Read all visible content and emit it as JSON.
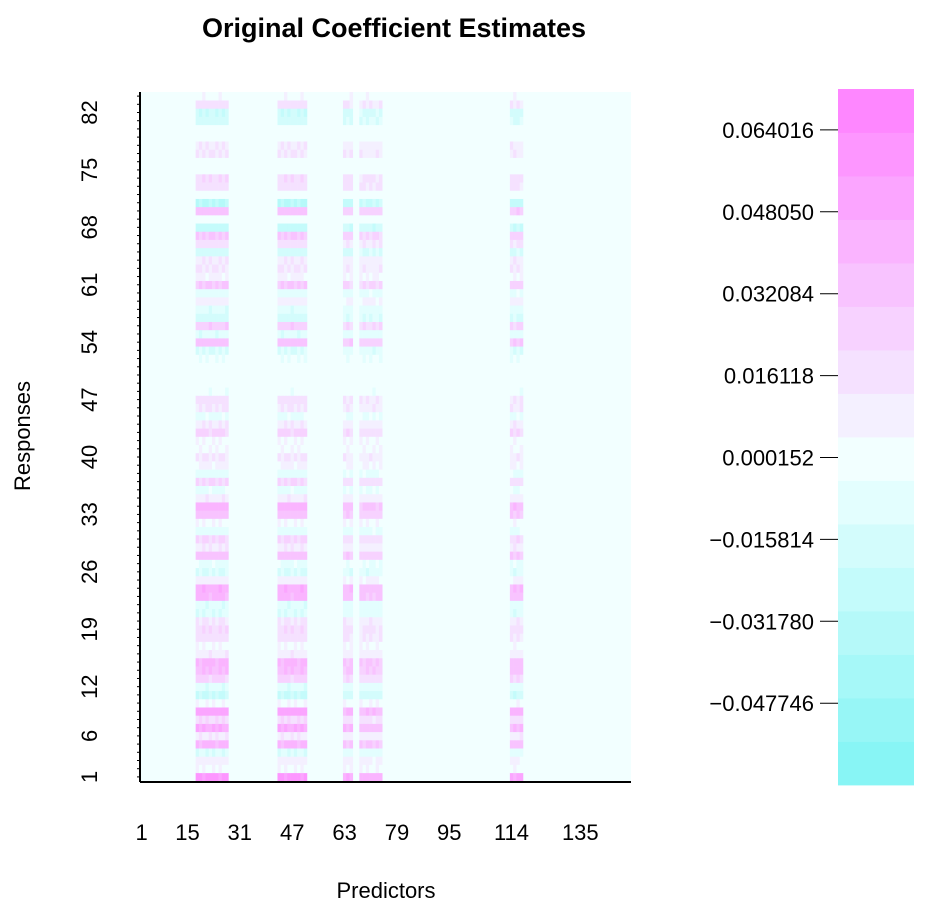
{
  "chart_data": {
    "type": "heatmap",
    "title": "Original Coefficient Estimates",
    "xlabel": "Predictors",
    "ylabel": "Responses",
    "x_range": [
      1,
      150
    ],
    "y_range": [
      1,
      84
    ],
    "x_tick_labels": [
      "1",
      "15",
      "31",
      "47",
      "63",
      "79",
      "95",
      "114",
      "135"
    ],
    "x_tick_values": [
      1,
      15,
      31,
      47,
      63,
      79,
      95,
      114,
      135
    ],
    "y_tick_labels": [
      "1",
      "6",
      "12",
      "19",
      "26",
      "33",
      "40",
      "47",
      "54",
      "61",
      "68",
      "75",
      "82"
    ],
    "y_tick_values": [
      1,
      6,
      12,
      19,
      26,
      33,
      40,
      47,
      54,
      61,
      68,
      75,
      82
    ],
    "colorbar": {
      "min": -0.0637,
      "max": 0.072,
      "tick_labels": [
        "0.064016",
        "0.048050",
        "0.032084",
        "0.016118",
        "0.000152",
        "−0.015814",
        "−0.031780",
        "−0.047746"
      ],
      "tick_values": [
        0.064016,
        0.04805,
        0.032084,
        0.016118,
        0.000152,
        -0.015814,
        -0.03178,
        -0.047746
      ],
      "levels": 16,
      "low_color": "#80f4f4",
      "mid_color": "#f2ffff",
      "high_color": "#ff80ff"
    },
    "background_color": "#f2ffff",
    "active_columns": [
      {
        "x_start": 18,
        "x_end": 27,
        "weight": 1.0
      },
      {
        "x_start": 43,
        "x_end": 51,
        "weight": 1.0
      },
      {
        "x_start": 63,
        "x_end": 65,
        "weight": 0.8
      },
      {
        "x_start": 68,
        "x_end": 74,
        "weight": 0.75
      },
      {
        "x_start": 114,
        "x_end": 117,
        "weight": 0.85
      }
    ],
    "row_values": [
      0.058,
      0.004,
      0.008,
      -0.012,
      0.04,
      0.012,
      0.046,
      0.02,
      0.05,
      0.004,
      -0.022,
      -0.01,
      0.024,
      0.038,
      0.04,
      0.01,
      0.004,
      0.016,
      0.02,
      0.014,
      -0.012,
      -0.01,
      0.04,
      0.044,
      0.008,
      -0.014,
      -0.006,
      0.034,
      0.012,
      0.022,
      -0.008,
      0.004,
      0.034,
      0.042,
      0.01,
      -0.006,
      0.022,
      -0.008,
      0.006,
      0.014,
      0.004,
      0.004,
      0.024,
      0.012,
      -0.006,
      0.014,
      0.016,
      -0.002,
      0.0,
      0.0,
      0.0,
      -0.004,
      -0.014,
      0.034,
      -0.01,
      0.028,
      -0.016,
      -0.01,
      0.008,
      -0.008,
      0.03,
      0.006,
      0.014,
      0.012,
      -0.018,
      0.016,
      0.03,
      -0.026,
      0.0,
      0.034,
      -0.03,
      0.0,
      0.018,
      0.02,
      0.0,
      0.0,
      0.014,
      0.012,
      0.0,
      0.0,
      -0.016,
      -0.02,
      0.016,
      0.002
    ]
  }
}
